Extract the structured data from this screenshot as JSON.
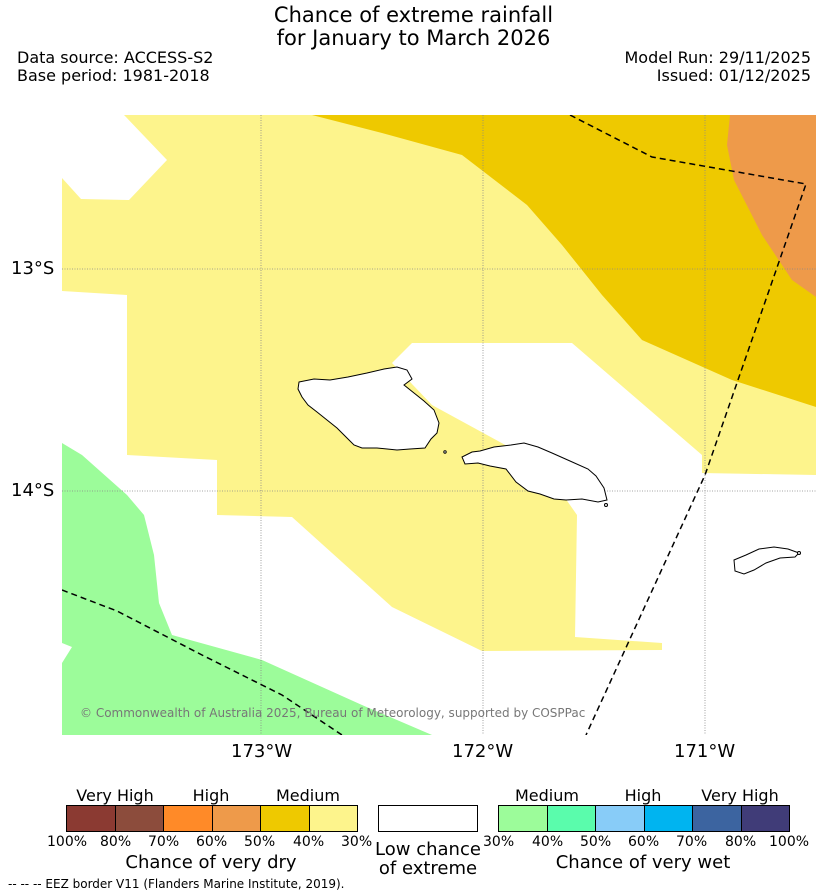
{
  "title_line1": "Chance of extreme rainfall",
  "title_line2": "for January to March 2026",
  "data_source": "Data source: ACCESS-S2",
  "base_period": "Base period: 1981-2018",
  "model_run": "Model Run: 29/11/2025",
  "issued": "Issued: 01/12/2025",
  "lat_labels": [
    "13°S",
    "14°S"
  ],
  "lon_labels": [
    "173°W",
    "172°W",
    "171°W"
  ],
  "copyright": "© Commonwealth of Australia 2025, Bureau of Meteorology, supported by COSPPac",
  "legend": {
    "dry": {
      "group_labels": [
        "Very High",
        "High",
        "Medium"
      ],
      "ticks": [
        "100%",
        "80%",
        "70%",
        "60%",
        "50%",
        "40%",
        "30%"
      ],
      "title": "Chance of very dry",
      "colors": [
        "#8b3a32",
        "#8c4c3c",
        "#ff8a28",
        "#ee9a4a",
        "#eec900",
        "#fdf48c"
      ]
    },
    "neutral": {
      "line1": "Low chance",
      "line2": "of extreme",
      "color": "#ffffff"
    },
    "wet": {
      "group_labels": [
        "Medium",
        "High",
        "Very High"
      ],
      "ticks": [
        "30%",
        "40%",
        "50%",
        "60%",
        "70%",
        "80%",
        "100%"
      ],
      "title": "Chance of very wet",
      "colors": [
        "#9cfc9a",
        "#5afcac",
        "#88ccf8",
        "#00b4f0",
        "#3c64a0",
        "#403c78"
      ]
    }
  },
  "footer": "--  --  -- EEZ border V11 (Flanders Marine Institute, 2019).",
  "map_colors": {
    "medium_dry": "#fdf48c",
    "medium_dry_dark": "#eec900",
    "high_dry": "#ee9a4a",
    "medium_wet": "#9cfc9a"
  }
}
